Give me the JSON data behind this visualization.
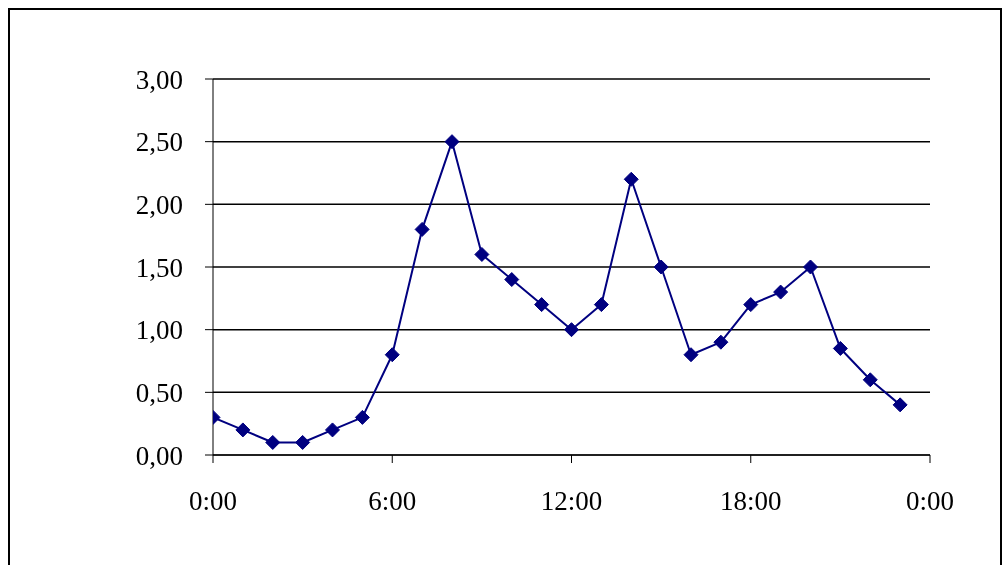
{
  "chart_data": {
    "type": "line",
    "x": [
      0,
      1,
      2,
      3,
      4,
      5,
      6,
      7,
      8,
      9,
      10,
      11,
      12,
      13,
      14,
      15,
      16,
      17,
      18,
      19,
      20,
      21,
      22,
      23
    ],
    "series": [
      {
        "color": "#000080",
        "values": [
          0.3,
          0.2,
          0.1,
          0.1,
          0.2,
          0.3,
          0.8,
          1.8,
          2.5,
          1.6,
          1.4,
          1.2,
          1.0,
          1.2,
          2.2,
          1.5,
          0.8,
          0.9,
          1.2,
          1.3,
          1.5,
          0.85,
          0.6,
          0.4
        ]
      }
    ],
    "xlim": [
      0,
      24
    ],
    "xticks": [
      {
        "value": 0,
        "label": "0:00"
      },
      {
        "value": 6,
        "label": "6:00"
      },
      {
        "value": 12,
        "label": "12:00"
      },
      {
        "value": 18,
        "label": "18:00"
      },
      {
        "value": 24,
        "label": "0:00"
      }
    ],
    "ylim": [
      0,
      3
    ],
    "yticks": [
      {
        "value": 0,
        "label": "0,00"
      },
      {
        "value": 0.5,
        "label": "0,50"
      },
      {
        "value": 1,
        "label": "1,00"
      },
      {
        "value": 1.5,
        "label": "1,50"
      },
      {
        "value": 2,
        "label": "2,00"
      },
      {
        "value": 2.5,
        "label": "2,50"
      },
      {
        "value": 3,
        "label": "3,00"
      }
    ],
    "grid": "y",
    "marker": "diamond",
    "line_style": "solid"
  }
}
